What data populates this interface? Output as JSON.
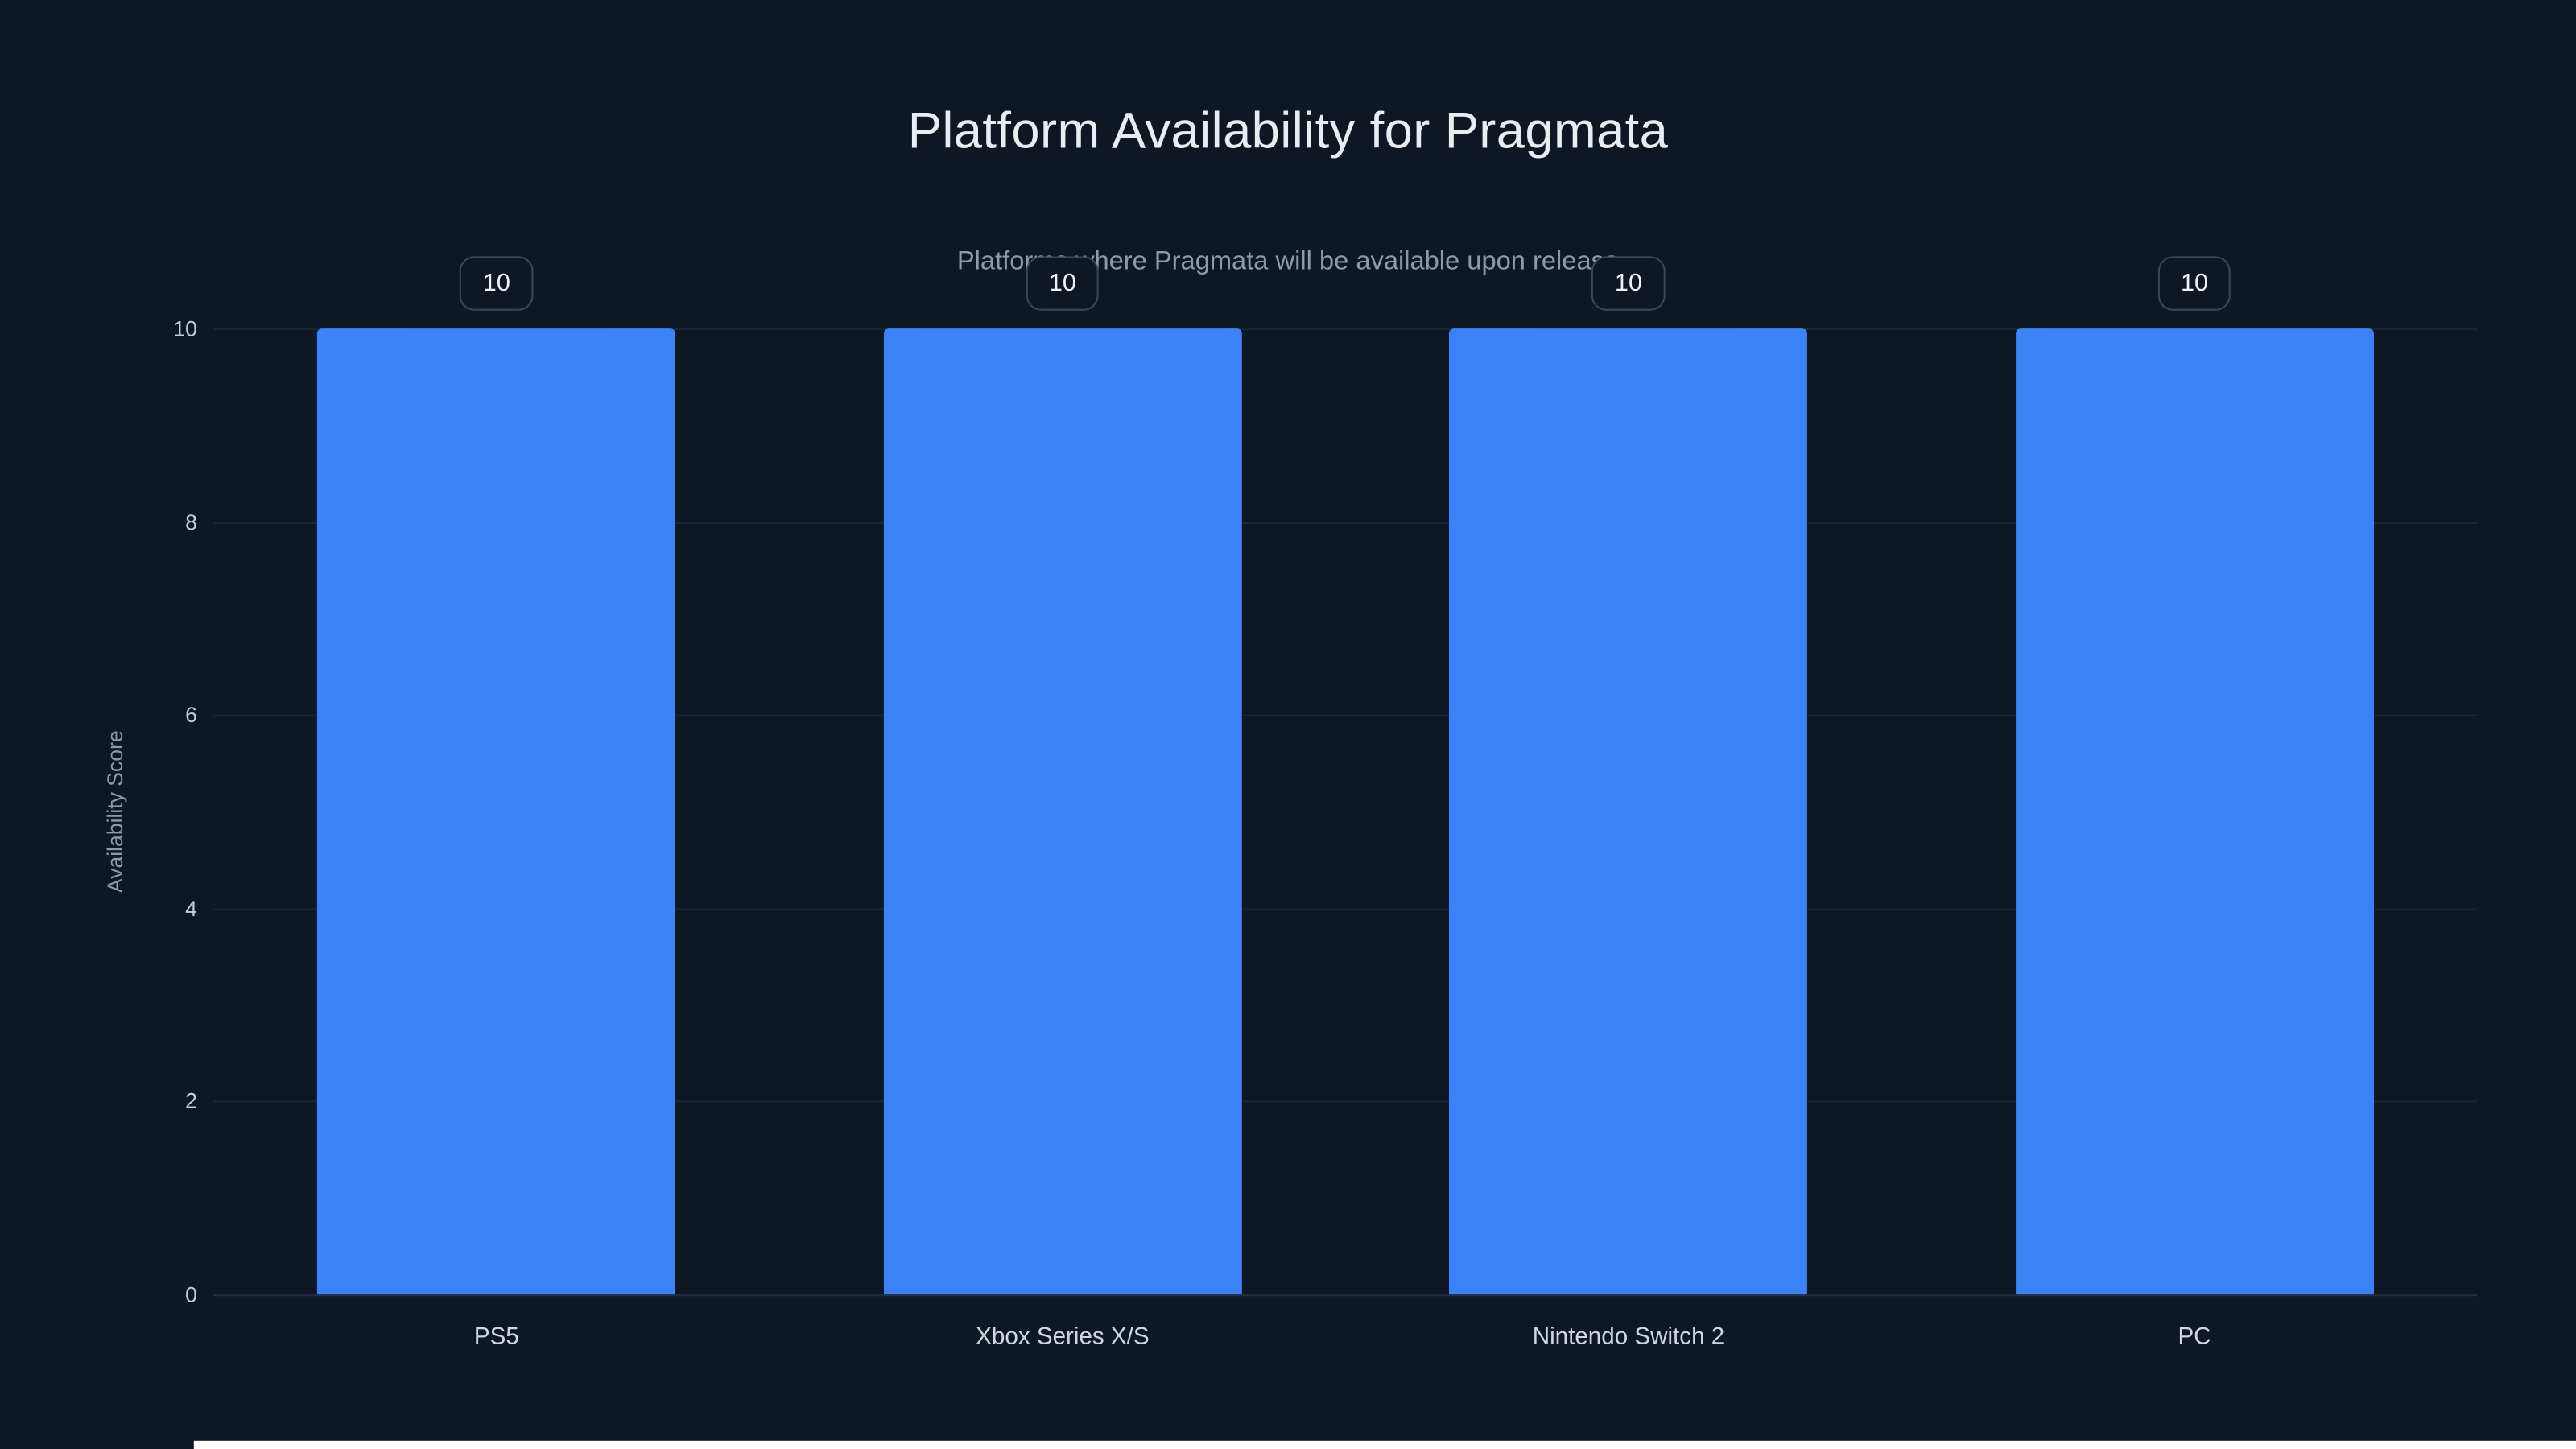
{
  "chart_data": {
    "type": "bar",
    "title": "Platform Availability for Pragmata",
    "subtitle": "Platforms where Pragmata will be available upon release",
    "categories": [
      "PS5",
      "Xbox Series X/S",
      "Nintendo Switch 2",
      "PC"
    ],
    "values": [
      10,
      10,
      10,
      10
    ],
    "value_labels": [
      "10",
      "10",
      "10",
      "10"
    ],
    "xlabel": "",
    "ylabel": "Availability Score",
    "ylim": [
      0,
      10
    ],
    "yticks": [
      0,
      2,
      4,
      6,
      8,
      10
    ],
    "grid": true,
    "legend_position": "none",
    "colors": {
      "bar": "#3b82f6",
      "background": "#0f1724",
      "gridline": "#1a2434",
      "title": "#e9edf2",
      "subtitle": "#8e99a9",
      "tick_label": "#c6cdd8",
      "axis_label": "#8e99a9",
      "badge_border": "#3c4656",
      "badge_text": "#eef2f7"
    }
  }
}
